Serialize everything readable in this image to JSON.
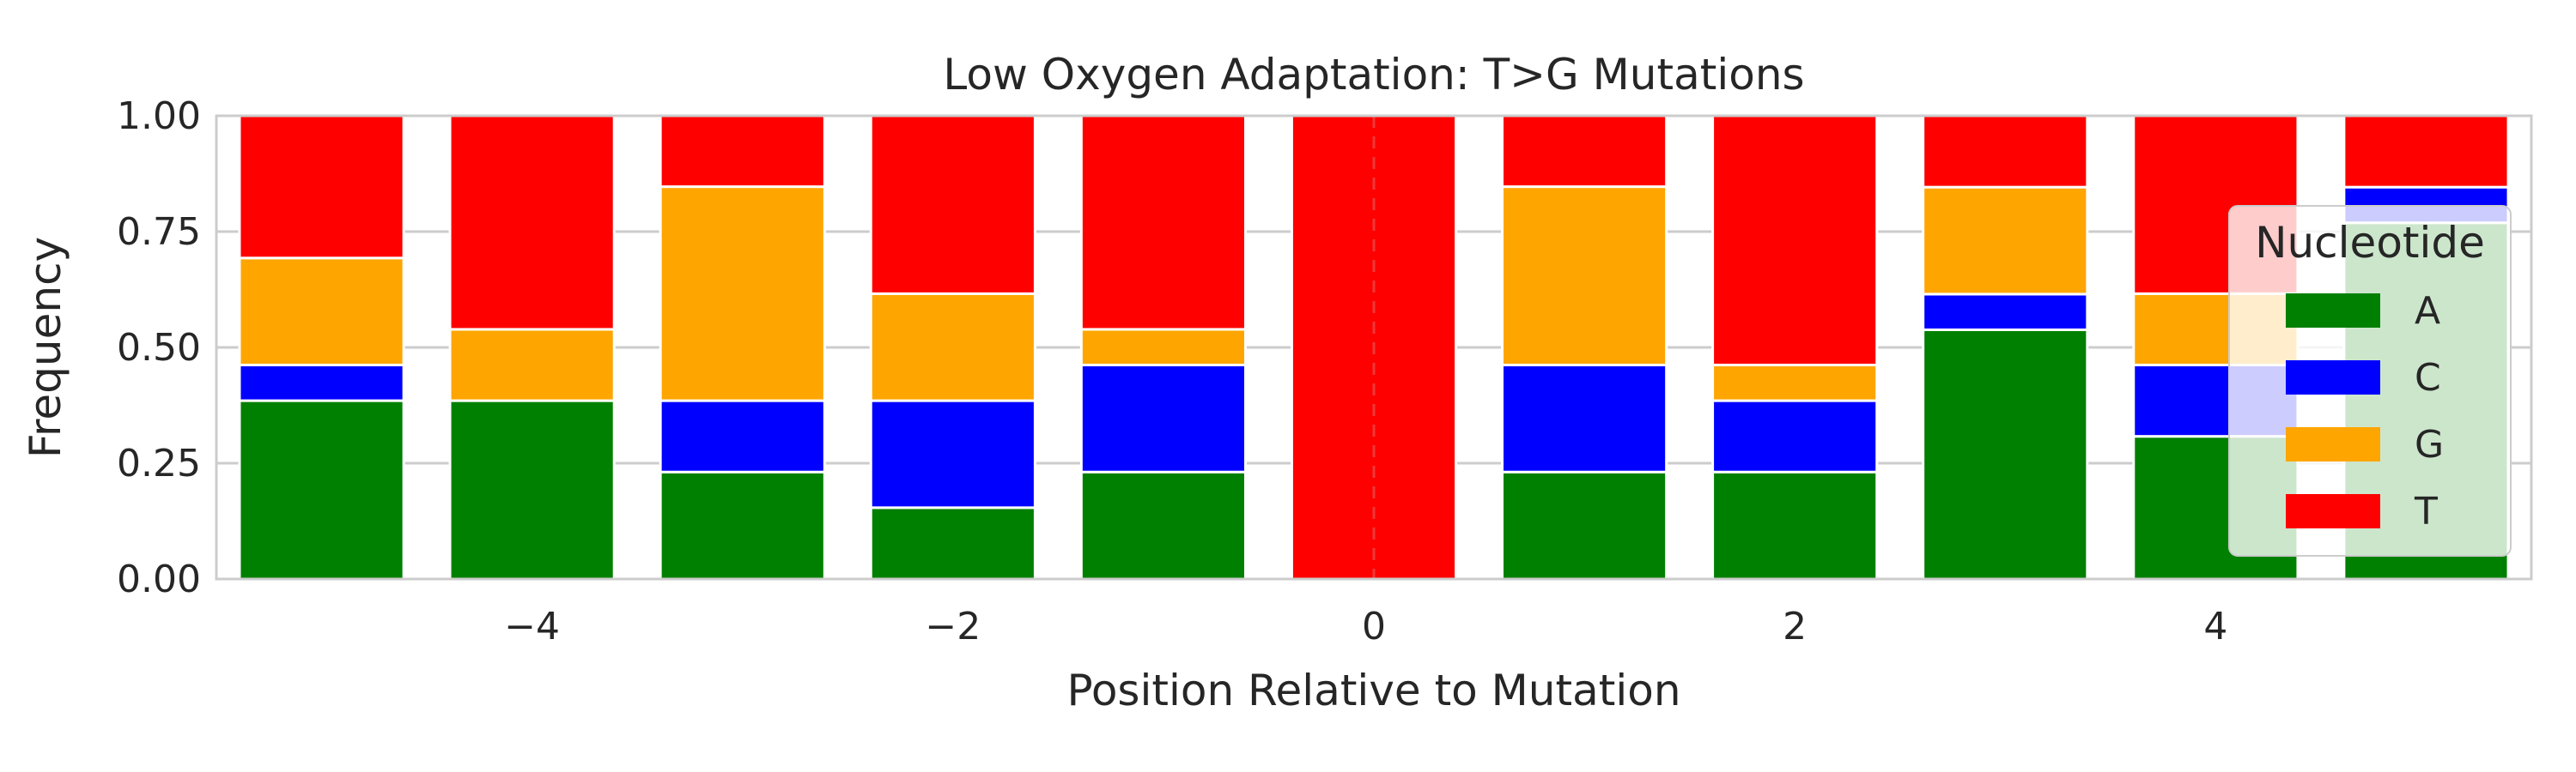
{
  "chart_data": {
    "type": "bar",
    "stacked": true,
    "title": "Low Oxygen Adaptation: T>G Mutations",
    "xlabel": "Position Relative to Mutation",
    "ylabel": "Frequency",
    "x": [
      -5,
      -4,
      -3,
      -2,
      -1,
      0,
      1,
      2,
      3,
      4,
      5
    ],
    "xticks": [
      -4,
      -2,
      0,
      2,
      4
    ],
    "xtick_labels": [
      "−4",
      "−2",
      "0",
      "2",
      "4"
    ],
    "xlim": [
      -5.5,
      5.5
    ],
    "ylim": [
      0,
      1
    ],
    "yticks": [
      0,
      0.25,
      0.5,
      0.75,
      1
    ],
    "ytick_labels": [
      "0.00",
      "0.25",
      "0.50",
      "0.75",
      "1.00"
    ],
    "grid": true,
    "legend": {
      "title": "Nucleotide",
      "placement": "right"
    },
    "series": [
      {
        "name": "A",
        "color": "#008000",
        "values": [
          0.385,
          0.385,
          0.231,
          0.154,
          0.231,
          0.0,
          0.231,
          0.231,
          0.538,
          0.308,
          0.769
        ]
      },
      {
        "name": "C",
        "color": "#0000ff",
        "values": [
          0.077,
          0.0,
          0.154,
          0.231,
          0.231,
          0.0,
          0.231,
          0.154,
          0.077,
          0.154,
          0.077
        ]
      },
      {
        "name": "G",
        "color": "#ffa500",
        "values": [
          0.231,
          0.154,
          0.462,
          0.231,
          0.077,
          0.0,
          0.385,
          0.077,
          0.231,
          0.154,
          0.0
        ]
      },
      {
        "name": "T",
        "color": "#ff0000",
        "values": [
          0.307,
          0.461,
          0.153,
          0.384,
          0.461,
          1.0,
          0.153,
          0.538,
          0.154,
          0.384,
          0.154
        ]
      }
    ],
    "reference_line": {
      "x": 0,
      "style": "dashed"
    }
  }
}
